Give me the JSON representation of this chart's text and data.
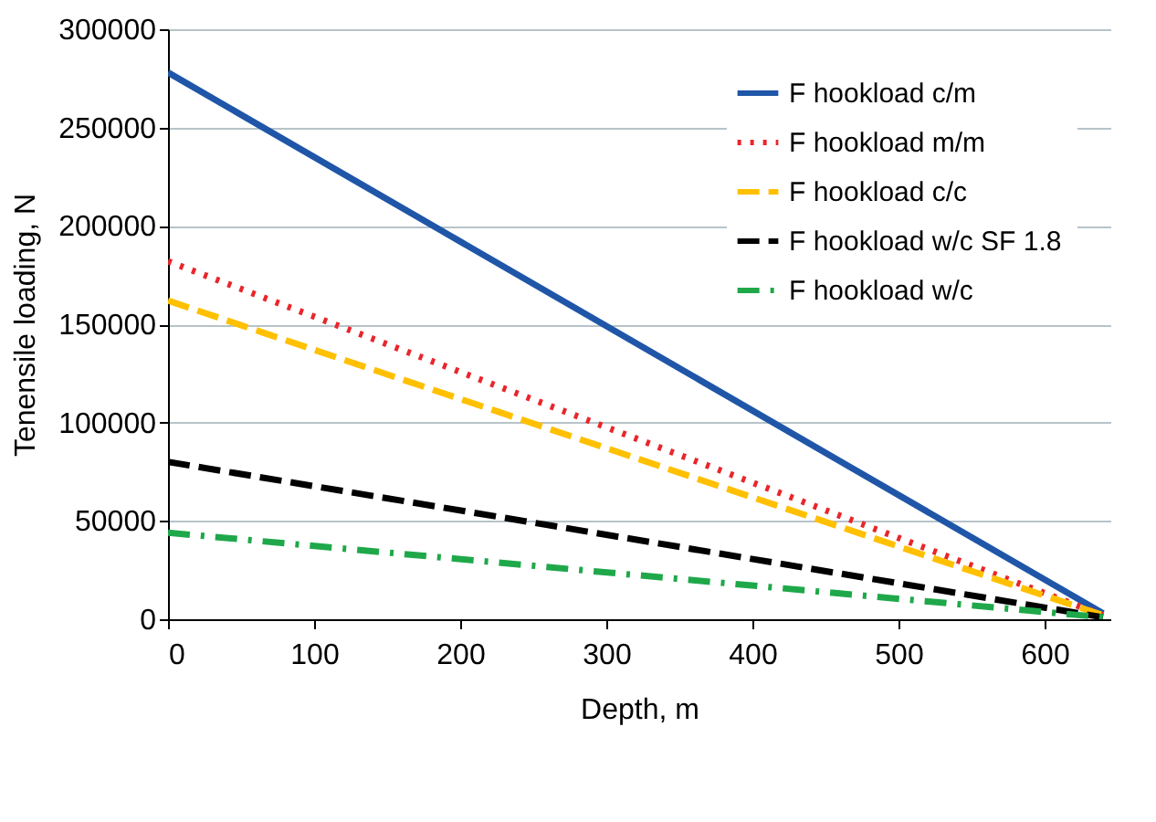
{
  "chart_data": {
    "type": "line",
    "xlabel": "Depth, m",
    "ylabel": "Tenensile loading, N",
    "x": [
      0,
      640
    ],
    "xlim": [
      0,
      645
    ],
    "xticks": [
      0,
      100,
      200,
      300,
      400,
      500,
      600
    ],
    "ylim": [
      0,
      300000
    ],
    "yticks": [
      0,
      50000,
      100000,
      150000,
      200000,
      250000,
      300000
    ],
    "grid": "y",
    "legend": "top right",
    "series": [
      {
        "name": "F hookload c/m",
        "color": "#1f56a8",
        "line_style": "solid",
        "values": [
          278000,
          3000
        ]
      },
      {
        "name": "F hookload m/m",
        "color": "#e8262b",
        "line_style": "dotted",
        "values": [
          182000,
          2000
        ]
      },
      {
        "name": "F hookload c/c",
        "color": "#ffc000",
        "line_style": "dashed",
        "values": [
          162000,
          2000
        ]
      },
      {
        "name": "F hookload w/c  SF 1.8",
        "color": "#000000",
        "line_style": "dashed",
        "values": [
          80000,
          1000
        ]
      },
      {
        "name": "F hookload w/c",
        "color": "#1fa84a",
        "line_style": "dashdot",
        "values": [
          44000,
          1000
        ]
      }
    ]
  }
}
